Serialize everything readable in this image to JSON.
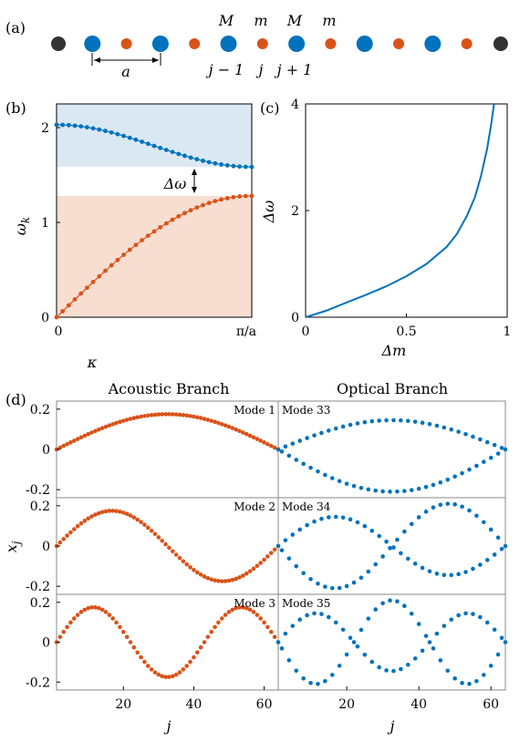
{
  "panel_labels": {
    "a": "(a)",
    "b": "(b)",
    "c": "(c)",
    "d": "(d)"
  },
  "chain": {
    "mass_labels": [
      "M",
      "m",
      "M",
      "m"
    ],
    "index_labels": [
      "j − 1",
      "j",
      "j + 1"
    ],
    "spacing_label": "a",
    "colors": {
      "heavy": "#0072BD",
      "light": "#D95319",
      "fixed": "#333333"
    },
    "sequence": [
      "fixed",
      "heavy",
      "light",
      "heavy",
      "light",
      "heavy",
      "light",
      "heavy",
      "light",
      "heavy",
      "light",
      "heavy",
      "light",
      "fixed"
    ]
  },
  "chart_data": [
    {
      "panel": "b",
      "type": "scatter",
      "xlabel": "κ",
      "ylabel": "ω_k",
      "xlim": [
        0,
        1
      ],
      "ylim": [
        0,
        2.25
      ],
      "x_ticks": [
        0,
        1
      ],
      "x_tick_labels": [
        "0",
        "π/a"
      ],
      "y_ticks": [
        0,
        1,
        2
      ],
      "y_tick_labels": [
        "0",
        "1",
        "2"
      ],
      "annotation": "Δω",
      "bands": [
        {
          "from": 1.585,
          "to": 2.25,
          "color": "#DAE8F4"
        },
        {
          "from": 0,
          "to": 1.28,
          "color": "#F8DDD1"
        }
      ],
      "series": [
        {
          "branch": "optical",
          "color": "#0072BD",
          "num_points": 33,
          "x_start": 0,
          "x_end": 1,
          "y_start": 2.03,
          "y_end": 1.585
        },
        {
          "branch": "acoustic",
          "color": "#D95319",
          "num_points": 33,
          "x_start": 0,
          "x_end": 1,
          "y_start": 0,
          "y_end": 1.28
        }
      ]
    },
    {
      "panel": "c",
      "type": "line",
      "xlabel": "Δm",
      "ylabel": "Δω",
      "xlim": [
        0,
        1
      ],
      "ylim": [
        0,
        4
      ],
      "x_ticks": [
        0,
        0.5,
        1
      ],
      "x_tick_labels": [
        "0",
        "0.5",
        "1"
      ],
      "y_ticks": [
        0,
        2,
        4
      ],
      "y_tick_labels": [
        "0",
        "2",
        "4"
      ],
      "color": "#0072BD",
      "x": [
        0,
        0.1,
        0.2,
        0.3,
        0.4,
        0.5,
        0.6,
        0.7,
        0.75,
        0.8,
        0.84,
        0.87,
        0.9,
        0.92,
        0.935
      ],
      "y": [
        0,
        0.12,
        0.27,
        0.42,
        0.58,
        0.77,
        1.0,
        1.32,
        1.56,
        1.9,
        2.25,
        2.65,
        3.15,
        3.6,
        4.0
      ]
    },
    {
      "panel": "d",
      "type": "scatter",
      "xlabel": "j",
      "ylabel": "x_j",
      "column_titles": [
        "Acoustic Branch",
        "Optical Branch"
      ],
      "xlim": [
        1,
        64
      ],
      "ylim": [
        -0.24,
        0.24
      ],
      "x_ticks": [
        20,
        40,
        60
      ],
      "x_tick_labels": [
        "20",
        "40",
        "60"
      ],
      "y_ticks": [
        0.2,
        0,
        -0.2
      ],
      "y_tick_labels": [
        "0.2",
        "0",
        "-0.2"
      ],
      "num_points": 64,
      "acoustic_color": "#D95319",
      "optical_color": "#0072BD",
      "rows": [
        {
          "acoustic_mode": "Mode 1",
          "optical_mode": "Mode 33",
          "harmonic": 1,
          "acoustic_amplitude": 0.175,
          "optical_amplitudes": [
            0.145,
            0.21
          ]
        },
        {
          "acoustic_mode": "Mode 2",
          "optical_mode": "Mode 34",
          "harmonic": 2,
          "acoustic_amplitude": 0.175,
          "optical_amplitudes": [
            0.145,
            0.21
          ]
        },
        {
          "acoustic_mode": "Mode 3",
          "optical_mode": "Mode 35",
          "harmonic": 3,
          "acoustic_amplitude": 0.175,
          "optical_amplitudes": [
            0.145,
            0.21
          ]
        }
      ]
    }
  ]
}
